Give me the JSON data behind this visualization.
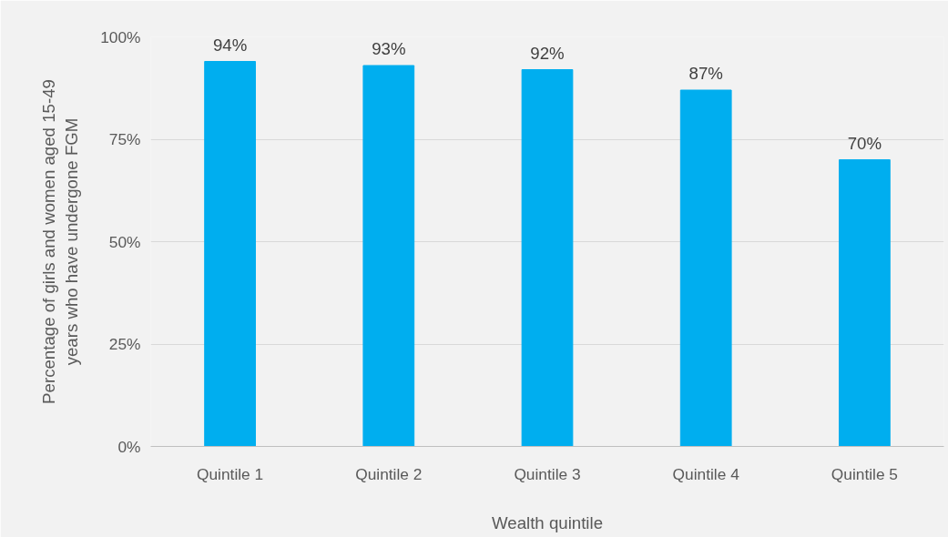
{
  "chart_data": {
    "type": "bar",
    "xlabel": "Wealth quintile",
    "ylabel": "Percentage of girls and women aged 15-49 years who have undergone FGM",
    "categories": [
      "Quintile 1",
      "Quintile 2",
      "Quintile 3",
      "Quintile 4",
      "Quintile 5"
    ],
    "values": [
      94,
      93,
      92,
      87,
      70
    ],
    "value_labels": [
      "94%",
      "93%",
      "92%",
      "87%",
      "70%"
    ],
    "color": "#00aeef",
    "ylim": [
      0,
      100
    ],
    "yticks": [
      {
        "value": 0,
        "label": "0%"
      },
      {
        "value": 25,
        "label": "25%"
      },
      {
        "value": 50,
        "label": "50%"
      },
      {
        "value": 75,
        "label": "75%"
      },
      {
        "value": 100,
        "label": "100%"
      }
    ],
    "grid": "y"
  }
}
